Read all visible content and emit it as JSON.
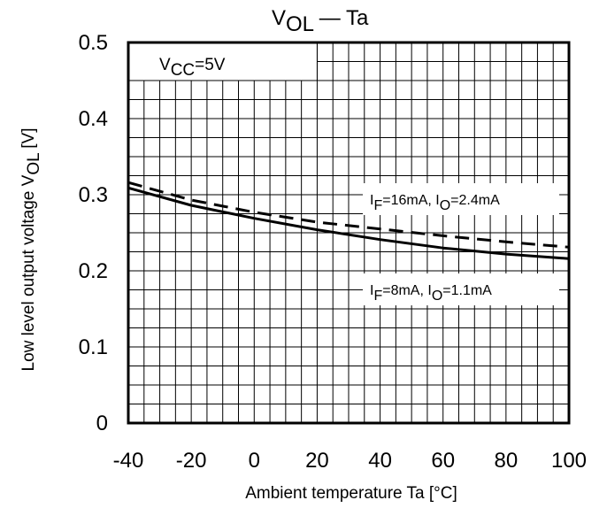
{
  "chart_data": {
    "type": "line",
    "title": {
      "main": "V",
      "sub": "OL",
      "rest": "Ta",
      "dash": "—"
    },
    "xlabel": "Ambient temperature Ta [°C]",
    "ylabel": {
      "text": "Low level output voltage  V",
      "sub": "OL",
      "unit": " [V]"
    },
    "xlim": [
      -40,
      100
    ],
    "ylim": [
      0,
      0.5
    ],
    "x_ticks": [
      -40,
      -20,
      0,
      20,
      40,
      60,
      80,
      100
    ],
    "x_tick_labels": [
      "-40",
      "-20",
      "0",
      "20",
      "40",
      "60",
      "80",
      "100"
    ],
    "y_ticks": [
      0,
      0.1,
      0.2,
      0.3,
      0.4,
      0.5
    ],
    "y_tick_labels": [
      "0",
      "0.1",
      "0.2",
      "0.3",
      "0.4",
      "0.5"
    ],
    "grid": true,
    "condition": {
      "main": "V",
      "sub": "CC",
      "rest": "=5V"
    },
    "series": [
      {
        "name": "IF=16mA, IO=2.4mA",
        "label_parts": [
          "I",
          "F",
          "=16mA, I",
          "O",
          "=2.4mA"
        ],
        "style": "dashed",
        "x": [
          -40,
          -20,
          0,
          20,
          40,
          60,
          80,
          100
        ],
        "y": [
          0.316,
          0.293,
          0.277,
          0.264,
          0.255,
          0.246,
          0.238,
          0.231
        ]
      },
      {
        "name": "IF=8mA, IO=1.1mA",
        "label_parts": [
          "I",
          "F",
          "=8mA, I",
          "O",
          "=1.1mA"
        ],
        "style": "solid",
        "x": [
          -40,
          -20,
          0,
          20,
          40,
          60,
          80,
          100
        ],
        "y": [
          0.309,
          0.286,
          0.269,
          0.254,
          0.241,
          0.23,
          0.222,
          0.216
        ]
      }
    ]
  }
}
